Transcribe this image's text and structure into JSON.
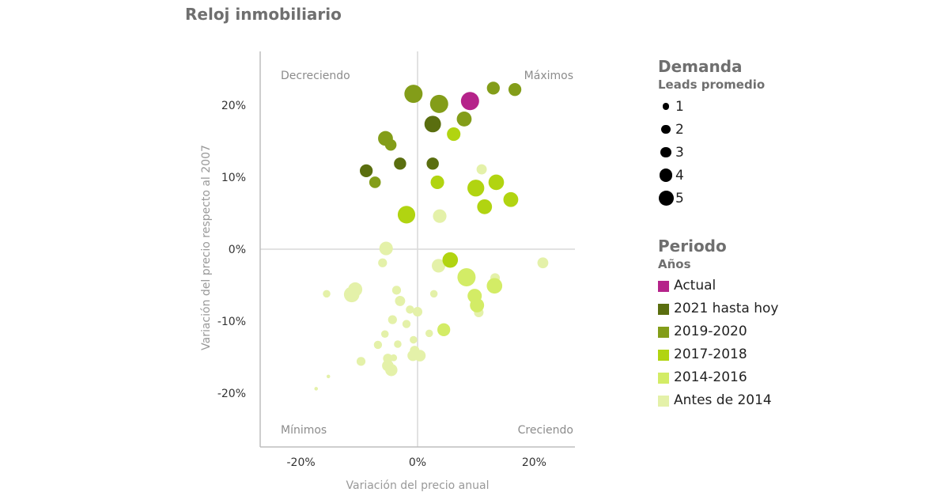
{
  "title": "Reloj inmobiliario",
  "chart_data": {
    "type": "scatter",
    "xlabel": "Variación del precio anual",
    "ylabel": "Variación del precio respecto al 2007",
    "xlim": [
      -27,
      27
    ],
    "ylim": [
      -27.5,
      27.5
    ],
    "x_ticks": [
      {
        "value": -20,
        "label": "-20%"
      },
      {
        "value": 0,
        "label": "0%"
      },
      {
        "value": 20,
        "label": "20%"
      }
    ],
    "y_ticks": [
      {
        "value": 20,
        "label": "20%"
      },
      {
        "value": 10,
        "label": "10%"
      },
      {
        "value": 0,
        "label": "0%"
      },
      {
        "value": -10,
        "label": "-10%"
      },
      {
        "value": -20,
        "label": "-20%"
      }
    ],
    "grid": false,
    "quadrant_labels": {
      "top_left": "Decreciendo",
      "top_right": "Máximos",
      "bottom_left": "Mínimos",
      "bottom_right": "Creciendo"
    },
    "size_legend": {
      "title": "Demanda",
      "subtitle": "Leads promedio",
      "items": [
        {
          "label": "1",
          "value": 1
        },
        {
          "label": "2",
          "value": 2
        },
        {
          "label": "3",
          "value": 3
        },
        {
          "label": "4",
          "value": 4
        },
        {
          "label": "5",
          "value": 5
        }
      ]
    },
    "color_legend": {
      "title": "Periodo",
      "subtitle": "Años",
      "items": [
        {
          "label": "Actual",
          "color": "#b5238a"
        },
        {
          "label": "2021 hasta hoy",
          "color": "#5a6e0f"
        },
        {
          "label": "2019-2020",
          "color": "#839d19"
        },
        {
          "label": "2017-2018",
          "color": "#b1d411"
        },
        {
          "label": "2014-2016",
          "color": "#d3ec66"
        },
        {
          "label": "Antes de 2014",
          "color": "#e4f1a9"
        }
      ]
    },
    "series": [
      {
        "name": "Actual",
        "color": "#b5238a",
        "points": [
          {
            "x": 9.0,
            "y": 20.6,
            "size": 5
          }
        ]
      },
      {
        "name": "2021 hasta hoy",
        "color": "#5a6e0f",
        "points": [
          {
            "x": 2.6,
            "y": 17.4,
            "size": 4.5
          },
          {
            "x": -3.0,
            "y": 11.9,
            "size": 3.2
          },
          {
            "x": 2.6,
            "y": 11.9,
            "size": 3.2
          },
          {
            "x": -8.8,
            "y": 10.9,
            "size": 3.4
          }
        ]
      },
      {
        "name": "2019-2020",
        "color": "#839d19",
        "points": [
          {
            "x": -0.7,
            "y": 21.6,
            "size": 5
          },
          {
            "x": 3.7,
            "y": 20.2,
            "size": 5
          },
          {
            "x": 13.0,
            "y": 22.4,
            "size": 3.4
          },
          {
            "x": 16.7,
            "y": 22.2,
            "size": 3.4
          },
          {
            "x": 8.0,
            "y": 18.1,
            "size": 4
          },
          {
            "x": -5.5,
            "y": 15.4,
            "size": 4
          },
          {
            "x": -4.6,
            "y": 14.5,
            "size": 3
          },
          {
            "x": -7.3,
            "y": 9.3,
            "size": 3
          }
        ]
      },
      {
        "name": "2017-2018",
        "color": "#b1d411",
        "points": [
          {
            "x": 6.2,
            "y": 16.0,
            "size": 3.6
          },
          {
            "x": 3.4,
            "y": 9.3,
            "size": 3.6
          },
          {
            "x": 10.0,
            "y": 8.5,
            "size": 4.6
          },
          {
            "x": 13.5,
            "y": 9.3,
            "size": 4.2
          },
          {
            "x": 16.0,
            "y": 6.9,
            "size": 4
          },
          {
            "x": 11.5,
            "y": 5.9,
            "size": 4
          },
          {
            "x": -1.9,
            "y": 4.8,
            "size": 4.8
          },
          {
            "x": 5.6,
            "y": -1.5,
            "size": 4.2
          }
        ]
      },
      {
        "name": "2014-2016",
        "color": "#d3ec66",
        "points": [
          {
            "x": 8.4,
            "y": -3.9,
            "size": 5
          },
          {
            "x": 13.2,
            "y": -5.1,
            "size": 4.2
          },
          {
            "x": 9.8,
            "y": -6.5,
            "size": 3.8
          },
          {
            "x": 10.2,
            "y": -7.8,
            "size": 3.8
          },
          {
            "x": 4.5,
            "y": -11.2,
            "size": 3.4
          }
        ]
      },
      {
        "name": "Antes de 2014",
        "color": "#e4f1a9",
        "points": [
          {
            "x": 11.0,
            "y": 11.1,
            "size": 2.6
          },
          {
            "x": 3.8,
            "y": 4.6,
            "size": 3.6
          },
          {
            "x": -5.4,
            "y": 0.1,
            "size": 3.6
          },
          {
            "x": -6.0,
            "y": -1.9,
            "size": 2.2
          },
          {
            "x": 3.6,
            "y": -2.3,
            "size": 3.6
          },
          {
            "x": 13.3,
            "y": -4.0,
            "size": 2.4
          },
          {
            "x": 21.5,
            "y": -1.9,
            "size": 2.8
          },
          {
            "x": -10.7,
            "y": -5.6,
            "size": 3.8
          },
          {
            "x": -11.3,
            "y": -6.3,
            "size": 4.2
          },
          {
            "x": -15.6,
            "y": -6.2,
            "size": 1.8
          },
          {
            "x": -3.6,
            "y": -5.7,
            "size": 2.2
          },
          {
            "x": -3.0,
            "y": -7.2,
            "size": 2.6
          },
          {
            "x": 2.8,
            "y": -6.2,
            "size": 1.8
          },
          {
            "x": -1.3,
            "y": -8.4,
            "size": 2.0
          },
          {
            "x": 0.0,
            "y": -8.7,
            "size": 2.4
          },
          {
            "x": -4.3,
            "y": -9.8,
            "size": 2.2
          },
          {
            "x": -1.9,
            "y": -10.4,
            "size": 2.0
          },
          {
            "x": 10.5,
            "y": -8.8,
            "size": 2.4
          },
          {
            "x": -5.6,
            "y": -11.8,
            "size": 1.8
          },
          {
            "x": 2.0,
            "y": -11.7,
            "size": 1.8
          },
          {
            "x": -6.8,
            "y": -13.3,
            "size": 2.0
          },
          {
            "x": -3.4,
            "y": -13.2,
            "size": 1.8
          },
          {
            "x": -0.7,
            "y": -12.6,
            "size": 1.8
          },
          {
            "x": -0.5,
            "y": -14.1,
            "size": 2.4
          },
          {
            "x": -5.1,
            "y": -15.2,
            "size": 2.4
          },
          {
            "x": -4.1,
            "y": -15.1,
            "size": 1.6
          },
          {
            "x": -0.8,
            "y": -14.8,
            "size": 2.8
          },
          {
            "x": 0.4,
            "y": -14.8,
            "size": 3.0
          },
          {
            "x": -5.1,
            "y": -16.2,
            "size": 3.0
          },
          {
            "x": -4.5,
            "y": -16.8,
            "size": 3.2
          },
          {
            "x": -9.7,
            "y": -15.6,
            "size": 2.2
          },
          {
            "x": -15.3,
            "y": -17.7,
            "size": 0.6
          },
          {
            "x": -17.4,
            "y": -19.4,
            "size": 0.6
          }
        ]
      }
    ]
  }
}
